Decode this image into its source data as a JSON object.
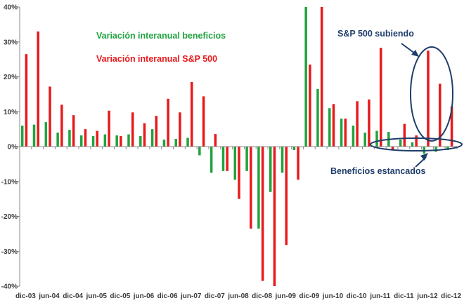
{
  "chart_data": {
    "type": "bar",
    "title": "",
    "xlabel": "",
    "ylabel": "",
    "ylim": [
      -40,
      40
    ],
    "yticks": [
      -40,
      -30,
      -20,
      -10,
      0,
      10,
      20,
      30,
      40
    ],
    "ytick_labels": [
      "-40%",
      "-30%",
      "-20%",
      "-10%",
      "0%",
      "10%",
      "20%",
      "30%",
      "40%"
    ],
    "grid": false,
    "legend_position": "top-left",
    "categories": [
      "dic-03",
      "mar-04",
      "jun-04",
      "sep-04",
      "dic-04",
      "mar-05",
      "jun-05",
      "sep-05",
      "dic-05",
      "mar-06",
      "jun-06",
      "sep-06",
      "dic-06",
      "mar-07",
      "jun-07",
      "sep-07",
      "dic-07",
      "mar-08",
      "jun-08",
      "sep-08",
      "dic-08",
      "mar-09",
      "jun-09",
      "sep-09",
      "dic-09",
      "mar-10",
      "jun-10",
      "sep-10",
      "dic-10",
      "mar-11",
      "jun-11",
      "sep-11",
      "dic-11",
      "mar-12",
      "jun-12",
      "sep-12",
      "dic-12"
    ],
    "xtick_labels": [
      "dic-03",
      "jun-04",
      "dic-04",
      "jun-05",
      "dic-05",
      "jun-06",
      "dic-06",
      "jun-07",
      "dic-07",
      "jun-08",
      "dic-08",
      "jun-09",
      "dic-09",
      "jun-10",
      "dic-10",
      "jun-11",
      "dic-11",
      "jun-12",
      "dic-12"
    ],
    "series": [
      {
        "name": "Variación interanual beneficios",
        "color": "#21a33f",
        "values": [
          6,
          6.3,
          7,
          4,
          4.8,
          3.2,
          3,
          3.5,
          3.2,
          3.5,
          3,
          5,
          2,
          2.2,
          2.5,
          -2.5,
          -7.5,
          -7,
          -9.5,
          -7,
          -23.5,
          -13,
          -7.5,
          -1,
          40,
          16.5,
          11,
          8,
          6,
          4,
          4.5,
          4.2,
          2,
          1.2,
          -2,
          -1.5,
          -1
        ]
      },
      {
        "name": "Variación interanual S&P 500",
        "color": "#e8191b",
        "values": [
          26.5,
          33,
          17.2,
          12,
          9,
          5,
          4.5,
          10.3,
          3,
          9.8,
          6.7,
          8.8,
          13.7,
          9.8,
          18.5,
          14.4,
          3.6,
          -7,
          -15,
          -23.5,
          -38.5,
          -40,
          -28.2,
          -9.5,
          23.5,
          40,
          12.2,
          8,
          13,
          13.5,
          28.3,
          -1,
          6.5,
          3.2,
          27.5,
          18,
          11.5
        ]
      }
    ],
    "annotations": [
      {
        "text": "S&P 500 subiendo",
        "target": "S&P 500 peaks jun-12 to dic-12"
      },
      {
        "text": "Beneficios estancados",
        "target": "beneficios near 0% dic-11 to dic-12"
      }
    ]
  }
}
